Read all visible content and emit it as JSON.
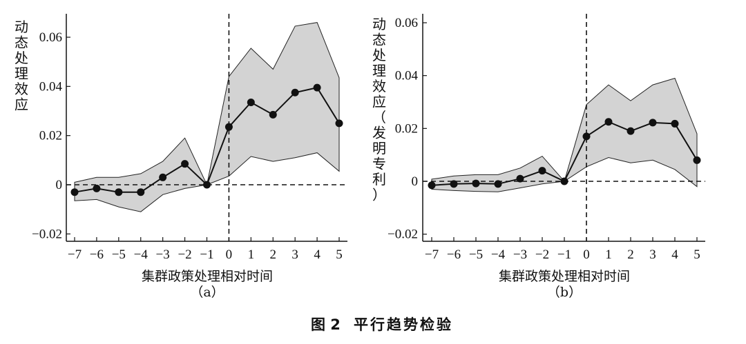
{
  "figure": {
    "caption_number": "图 2",
    "caption_title": "平行趋势检验"
  },
  "chart_data": [
    {
      "type": "line",
      "panel_label": "（a）",
      "xlabel": "集群政策处理相对时间",
      "ylabel": "动态处理效应",
      "x": [
        -7,
        -6,
        -5,
        -4,
        -3,
        -2,
        -1,
        0,
        1,
        2,
        3,
        4,
        5
      ],
      "x_tick_labels": [
        "−7",
        "−6",
        "−5",
        "−4",
        "−3",
        "−2",
        "−1",
        "0",
        "1",
        "2",
        "3",
        "4",
        "5"
      ],
      "ylim": [
        -0.022,
        0.068
      ],
      "yticks": [
        -0.02,
        0,
        0.02,
        0.04,
        0.06
      ],
      "y_tick_labels": [
        "−0.02",
        "0",
        "0.02",
        "0.04",
        "0.06"
      ],
      "series": [
        {
          "values": [
            -0.003,
            -0.0015,
            -0.003,
            -0.003,
            0.003,
            0.0085,
            0.0,
            0.0235,
            0.0335,
            0.0285,
            0.0375,
            0.0395,
            0.025
          ]
        }
      ],
      "ci_upper": [
        0.001,
        0.003,
        0.003,
        0.0045,
        0.0095,
        0.019,
        0.0,
        0.044,
        0.0555,
        0.047,
        0.0645,
        0.066,
        0.0435
      ],
      "ci_lower": [
        -0.0065,
        -0.006,
        -0.009,
        -0.011,
        -0.004,
        -0.0015,
        0.0,
        0.0035,
        0.0115,
        0.0095,
        0.011,
        0.013,
        0.0055
      ],
      "reference_lines": {
        "y": 0,
        "x": 0
      },
      "colors": {
        "band": "#d3d3d3",
        "line": "#111111"
      }
    },
    {
      "type": "line",
      "panel_label": "（b）",
      "xlabel": "集群政策处理相对时间",
      "ylabel": "动态处理效应（发明专利）",
      "x": [
        -7,
        -6,
        -5,
        -4,
        -3,
        -2,
        -1,
        0,
        1,
        2,
        3,
        4,
        5
      ],
      "x_tick_labels": [
        "−7",
        "−6",
        "−5",
        "−4",
        "−3",
        "−2",
        "−1",
        "0",
        "1",
        "2",
        "3",
        "4",
        "5"
      ],
      "ylim": [
        -0.022,
        0.063
      ],
      "yticks": [
        -0.02,
        0,
        0.02,
        0.04,
        0.06
      ],
      "y_tick_labels": [
        "−0.02",
        "0",
        "0.02",
        "0.04",
        "0.06"
      ],
      "series": [
        {
          "values": [
            -0.0015,
            -0.001,
            -0.0008,
            -0.001,
            0.001,
            0.004,
            0.0,
            0.017,
            0.0225,
            0.019,
            0.0222,
            0.0218,
            0.008
          ]
        }
      ],
      "ci_upper": [
        0.0008,
        0.002,
        0.0025,
        0.0025,
        0.005,
        0.0095,
        0.0,
        0.029,
        0.0365,
        0.0305,
        0.0365,
        0.039,
        0.018
      ],
      "ci_lower": [
        -0.003,
        -0.0035,
        -0.0038,
        -0.004,
        -0.0025,
        -0.001,
        0.0,
        0.0055,
        0.009,
        0.007,
        0.008,
        0.0045,
        -0.002
      ],
      "reference_lines": {
        "y": 0,
        "x": 0
      },
      "colors": {
        "band": "#d3d3d3",
        "line": "#111111"
      }
    }
  ]
}
